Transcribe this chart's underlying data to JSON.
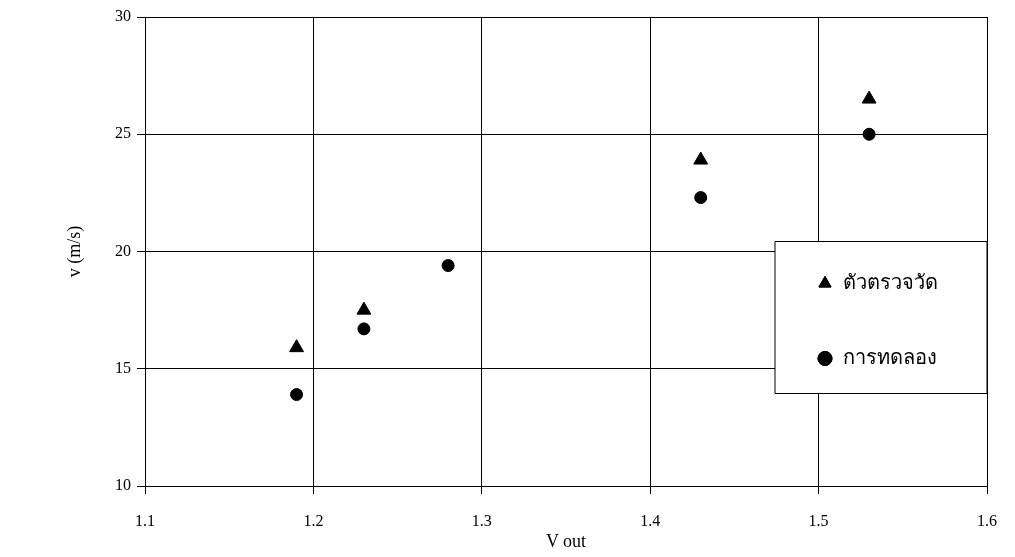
{
  "chart_data": {
    "type": "scatter",
    "xlabel": "V out",
    "ylabel": "v (m/s)",
    "xlim": [
      1.1,
      1.6
    ],
    "xticks": [
      1.1,
      1.2,
      1.3,
      1.4,
      1.5,
      1.6
    ],
    "ylim": [
      10,
      30
    ],
    "yticks": [
      10,
      15,
      20,
      25,
      30
    ],
    "grid": true,
    "legend": "right",
    "series": [
      {
        "name": "ตัวตรวจวัด",
        "color": "#000000",
        "marker": "triangle",
        "x": [
          1.19,
          1.23,
          1.28,
          1.43,
          1.53
        ],
        "values": [
          15.9,
          17.5,
          null,
          23.9,
          26.5
        ]
      },
      {
        "name": "การทดลอง",
        "color": "#000000",
        "marker": "circle",
        "x": [
          1.19,
          1.23,
          1.28,
          1.43,
          1.53
        ],
        "values": [
          13.9,
          16.7,
          19.4,
          22.3,
          25.0
        ]
      }
    ]
  }
}
